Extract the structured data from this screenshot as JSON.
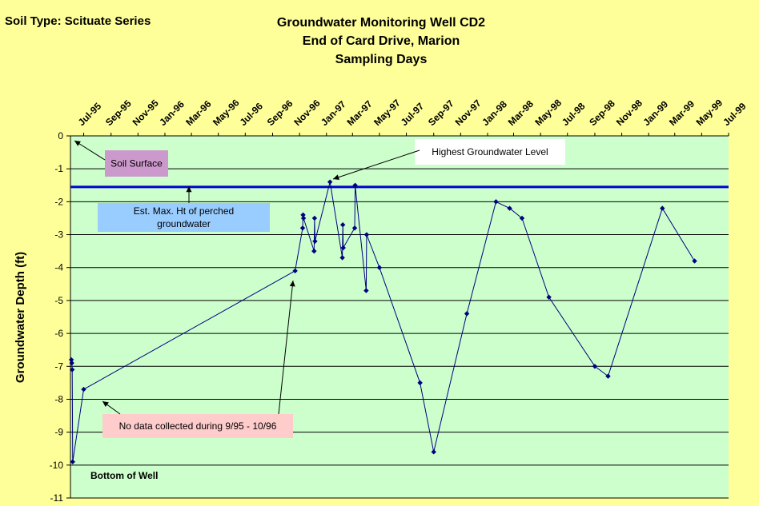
{
  "header": {
    "soil_type": "Soil Type:  Scituate Series",
    "title_lines": [
      "Groundwater Monitoring Well CD2",
      "End of Card Drive, Marion",
      "Sampling Days"
    ]
  },
  "chart_data": {
    "type": "line",
    "title": "Groundwater Monitoring Well CD2\nEnd of Card Drive, Marion\nSampling Days",
    "ylabel": "Groundwater Depth (ft)",
    "xlabel": "",
    "ylim": [
      -11,
      0
    ],
    "y_ticks": [
      0,
      -1,
      -2,
      -3,
      -4,
      -5,
      -6,
      -7,
      -8,
      -9,
      -10,
      -11
    ],
    "x_range": [
      "1995-06-01",
      "1999-07-01"
    ],
    "x_tick_labels": [
      "Jul-95",
      "Sep-95",
      "Nov-95",
      "Jan-96",
      "Mar-96",
      "May-96",
      "Jul-96",
      "Sep-96",
      "Nov-96",
      "Jan-97",
      "Mar-97",
      "May-97",
      "Jul-97",
      "Sep-97",
      "Nov-97",
      "Jan-98",
      "Mar-98",
      "May-98",
      "Jul-98",
      "Sep-98",
      "Nov-98",
      "Jan-99",
      "Mar-99",
      "May-99",
      "Jul-99"
    ],
    "grid": true,
    "background": "#CCFFCC",
    "series": [
      {
        "color": "#000080",
        "points": [
          [
            "1995-06-03",
            -6.8
          ],
          [
            "1995-06-04",
            -6.9
          ],
          [
            "1995-06-05",
            -7.1
          ],
          [
            "1995-06-06",
            -9.9
          ],
          [
            "1995-07-01",
            -7.7
          ],
          [
            "1996-10-22",
            -4.1
          ],
          [
            "1996-11-08",
            -2.8
          ],
          [
            "1996-11-09",
            -2.4
          ],
          [
            "1996-11-10",
            -2.5
          ],
          [
            "1996-12-04",
            -3.5
          ],
          [
            "1996-12-05",
            -2.5
          ],
          [
            "1996-12-06",
            -3.2
          ],
          [
            "1997-01-09",
            -1.4
          ],
          [
            "1997-02-06",
            -3.7
          ],
          [
            "1997-02-07",
            -2.7
          ],
          [
            "1997-02-08",
            -3.4
          ],
          [
            "1997-03-06",
            -2.8
          ],
          [
            "1997-03-07",
            -1.5
          ],
          [
            "1997-04-01",
            -4.7
          ],
          [
            "1997-04-02",
            -3.0
          ],
          [
            "1997-05-01",
            -4.0
          ],
          [
            "1997-08-01",
            -7.5
          ],
          [
            "1997-09-01",
            -9.6
          ],
          [
            "1997-11-15",
            -5.4
          ],
          [
            "1998-01-20",
            -2.0
          ],
          [
            "1998-02-20",
            -2.2
          ],
          [
            "1998-03-20",
            -2.5
          ],
          [
            "1998-05-20",
            -4.9
          ],
          [
            "1998-09-01",
            -7.0
          ],
          [
            "1998-10-01",
            -7.3
          ],
          [
            "1999-02-01",
            -2.2
          ],
          [
            "1999-04-15",
            -3.8
          ]
        ]
      }
    ],
    "reference_line": {
      "y": -1.55,
      "color": "#0000CC"
    },
    "annotations": [
      {
        "id": "soil-surface",
        "text": "Soil Surface",
        "bg": "#CC99CC"
      },
      {
        "id": "highest",
        "text": "Highest Groundwater Level",
        "bg": "#FFFFFF"
      },
      {
        "id": "perched",
        "text": "Est. Max. Ht of perched groundwater",
        "bg": "#99CCFF"
      },
      {
        "id": "no-data",
        "text": "No data collected during 9/95 - 10/96",
        "bg": "#FFCCCC"
      },
      {
        "id": "bottom",
        "text": "Bottom of Well",
        "bg": ""
      }
    ]
  }
}
